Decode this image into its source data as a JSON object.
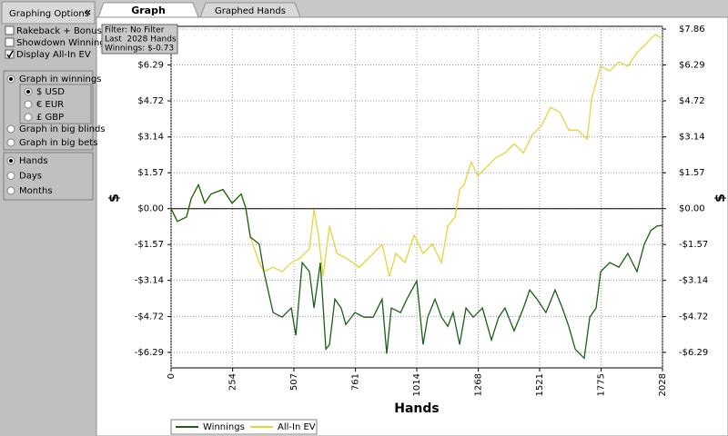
{
  "tabs": [
    {
      "label": "Graph",
      "active": true
    },
    {
      "label": "Graphed Hands",
      "active": false
    }
  ],
  "sidebar": {
    "title": "Graphing Options",
    "collapse": "«",
    "checkboxes": [
      {
        "label": "Rakeback + Bonuses",
        "checked": false
      },
      {
        "label": "Showdown Winnings",
        "checked": false
      },
      {
        "label": "Display All-In EV",
        "checked": true
      }
    ],
    "graph_modes": [
      {
        "label": "Graph in winnings",
        "selected": true
      },
      {
        "label": "Graph in big blinds",
        "selected": false
      },
      {
        "label": "Graph in big bets",
        "selected": false
      }
    ],
    "currencies": [
      {
        "label": "$ USD",
        "selected": true
      },
      {
        "label": "€ EUR",
        "selected": false
      },
      {
        "label": "£ GBP",
        "selected": false
      }
    ],
    "x_units": [
      {
        "label": "Hands",
        "selected": true
      },
      {
        "label": "Days",
        "selected": false
      },
      {
        "label": "Months",
        "selected": false
      }
    ]
  },
  "filter_box": {
    "lines": [
      "Filter: No Filter",
      "Last  2028 Hands",
      "Winnings: $-0.73"
    ]
  },
  "chart_data": {
    "type": "line",
    "x_label": "Hands",
    "y_label": "$",
    "grid": true,
    "legend": "bottom",
    "xlim": [
      0,
      2028
    ],
    "xticks": [
      0,
      254,
      507,
      761,
      1014,
      1268,
      1521,
      1775,
      2028
    ],
    "ylim": [
      -6.97,
      7.98
    ],
    "yticks": [
      {
        "value": -6.29,
        "label": "-$6.29"
      },
      {
        "value": -4.72,
        "label": "-$4.72"
      },
      {
        "value": -3.14,
        "label": "-$3.14"
      },
      {
        "value": -1.57,
        "label": "-$1.57"
      },
      {
        "value": 0,
        "label": "$0.00"
      },
      {
        "value": 1.57,
        "label": "$1.57"
      },
      {
        "value": 3.14,
        "label": "$3.14"
      },
      {
        "value": 4.72,
        "label": "$4.72"
      },
      {
        "value": 6.29,
        "label": "$6.29"
      },
      {
        "value": 7.86,
        "label": "$7.86"
      }
    ],
    "series": [
      {
        "name": "Winnings",
        "color": "#1b5e17",
        "x": [
          0,
          26,
          64,
          83,
          113,
          139,
          165,
          214,
          252,
          289,
          308,
          327,
          364,
          383,
          421,
          458,
          496,
          515,
          541,
          571,
          590,
          616,
          639,
          654,
          676,
          702,
          721,
          759,
          796,
          834,
          871,
          890,
          909,
          947,
          973,
          1014,
          1040,
          1059,
          1089,
          1116,
          1142,
          1164,
          1191,
          1217,
          1247,
          1285,
          1322,
          1352,
          1378,
          1416,
          1454,
          1480,
          1510,
          1547,
          1585,
          1615,
          1641,
          1668,
          1705,
          1728,
          1754,
          1773,
          1810,
          1848,
          1885,
          1923,
          1953,
          1980,
          2006,
          2028
        ],
        "values": [
          0,
          -0.56,
          -0.36,
          0.44,
          1.04,
          0.24,
          0.64,
          0.84,
          0.24,
          0.64,
          0.04,
          -1.24,
          -1.56,
          -2.76,
          -4.55,
          -4.75,
          -4.35,
          -5.55,
          -2.36,
          -2.76,
          -4.35,
          -2.36,
          -6.15,
          -5.95,
          -3.96,
          -4.35,
          -5.07,
          -4.55,
          -4.75,
          -4.75,
          -3.96,
          -6.35,
          -4.35,
          -4.55,
          -3.96,
          -3.16,
          -5.95,
          -4.75,
          -3.96,
          -4.75,
          -5.15,
          -4.55,
          -5.95,
          -4.35,
          -4.75,
          -4.35,
          -5.75,
          -4.75,
          -4.35,
          -5.35,
          -4.35,
          -3.56,
          -3.96,
          -4.55,
          -3.56,
          -4.35,
          -5.15,
          -6.15,
          -6.55,
          -4.75,
          -4.35,
          -2.76,
          -2.36,
          -2.56,
          -1.96,
          -2.76,
          -1.56,
          -0.96,
          -0.76,
          -0.73
        ]
      },
      {
        "name": "All-In EV",
        "color": "#e8d23c",
        "x": [
          0,
          26,
          64,
          83,
          113,
          139,
          165,
          214,
          252,
          289,
          308,
          327,
          364,
          383,
          421,
          458,
          496,
          533,
          571,
          590,
          608,
          627,
          654,
          684,
          721,
          777,
          834,
          871,
          901,
          928,
          965,
          1003,
          1040,
          1078,
          1116,
          1142,
          1172,
          1191,
          1209,
          1239,
          1266,
          1303,
          1341,
          1378,
          1416,
          1454,
          1491,
          1529,
          1566,
          1604,
          1641,
          1679,
          1717,
          1736,
          1773,
          1810,
          1848,
          1885,
          1923,
          1961,
          1998,
          2028
        ],
        "values": [
          0,
          -0.56,
          -0.36,
          0.44,
          1.04,
          0.24,
          0.64,
          0.84,
          0.24,
          0.64,
          0.04,
          -1.24,
          -2.36,
          -2.76,
          -2.56,
          -2.76,
          -2.36,
          -2.16,
          -1.76,
          -0.04,
          -1.16,
          -2.96,
          -0.76,
          -1.96,
          -2.16,
          -2.56,
          -1.96,
          -1.56,
          -2.96,
          -1.96,
          -2.36,
          -1.16,
          -1.96,
          -1.56,
          -2.36,
          -0.76,
          -0.36,
          0.84,
          1.04,
          2.04,
          1.44,
          1.84,
          2.24,
          2.44,
          2.84,
          2.44,
          3.24,
          3.64,
          4.43,
          4.23,
          3.44,
          3.44,
          3.04,
          4.83,
          6.23,
          6.03,
          6.43,
          6.23,
          6.83,
          7.23,
          7.63,
          7.43
        ]
      }
    ]
  }
}
